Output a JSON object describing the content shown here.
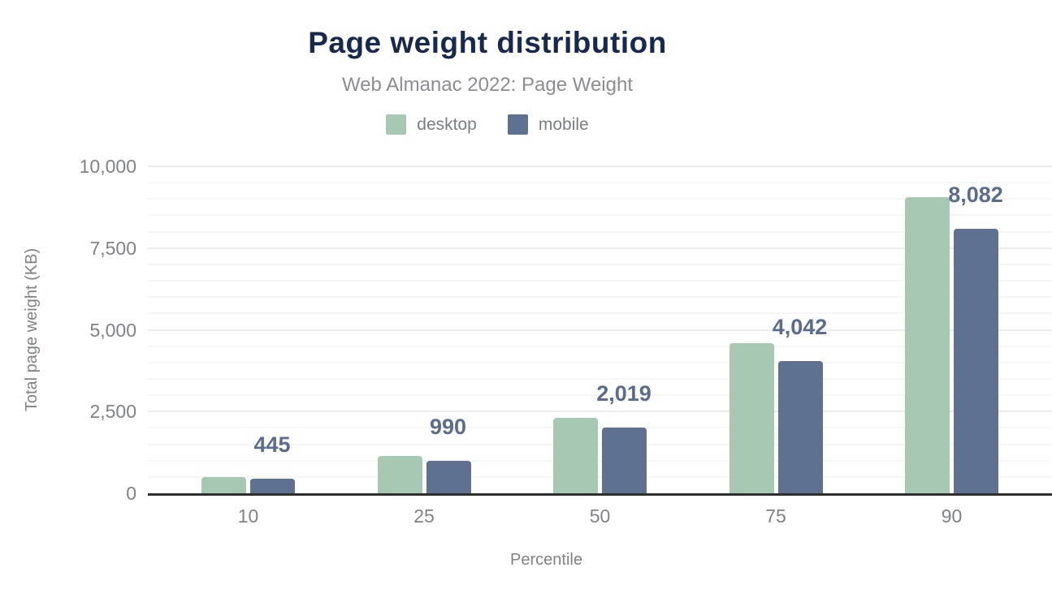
{
  "header": {
    "title": "Page weight distribution",
    "subtitle": "Web Almanac 2022: Page Weight"
  },
  "legend": {
    "items": [
      {
        "label": "desktop",
        "color": "#a7c9b4"
      },
      {
        "label": "mobile",
        "color": "#5e7190"
      }
    ]
  },
  "axes": {
    "x_title": "Percentile",
    "y_title": "Total page weight (KB)"
  },
  "colors": {
    "title": "#17294d",
    "subtitle_text": "#8b8d92",
    "axis_text": "#7f8287",
    "data_label_text": "#5b6c8e",
    "baseline": "#2e2e2e",
    "major_gridline": "#ececec",
    "minor_gridline": "#f6f6f6",
    "desktop_bar": "#a7c9b4",
    "mobile_bar": "#5e7190"
  },
  "chart_data": {
    "type": "bar",
    "title": "Page weight distribution",
    "subtitle": "Web Almanac 2022: Page Weight",
    "categories": [
      "10",
      "25",
      "50",
      "75",
      "90"
    ],
    "series": [
      {
        "name": "desktop",
        "color": "#a7c9b4",
        "values": [
          500,
          1150,
          2300,
          4600,
          9050
        ]
      },
      {
        "name": "mobile",
        "color": "#5e7190",
        "values": [
          445,
          990,
          2019,
          4042,
          8082
        ]
      }
    ],
    "data_labels": [
      "445",
      "990",
      "2,019",
      "4,042",
      "8,082"
    ],
    "data_labels_for_series": "mobile",
    "xlabel": "Percentile",
    "ylabel": "Total page weight (KB)",
    "ylim": [
      0,
      10000
    ],
    "y_major_step": 2500,
    "y_minor_step": 500,
    "y_tick_labels": [
      "0",
      "2,500",
      "5,000",
      "7,500",
      "10,000"
    ],
    "x_tick_labels": [
      "10",
      "25",
      "50",
      "75",
      "90"
    ],
    "grid": true,
    "legend_position": "top"
  }
}
